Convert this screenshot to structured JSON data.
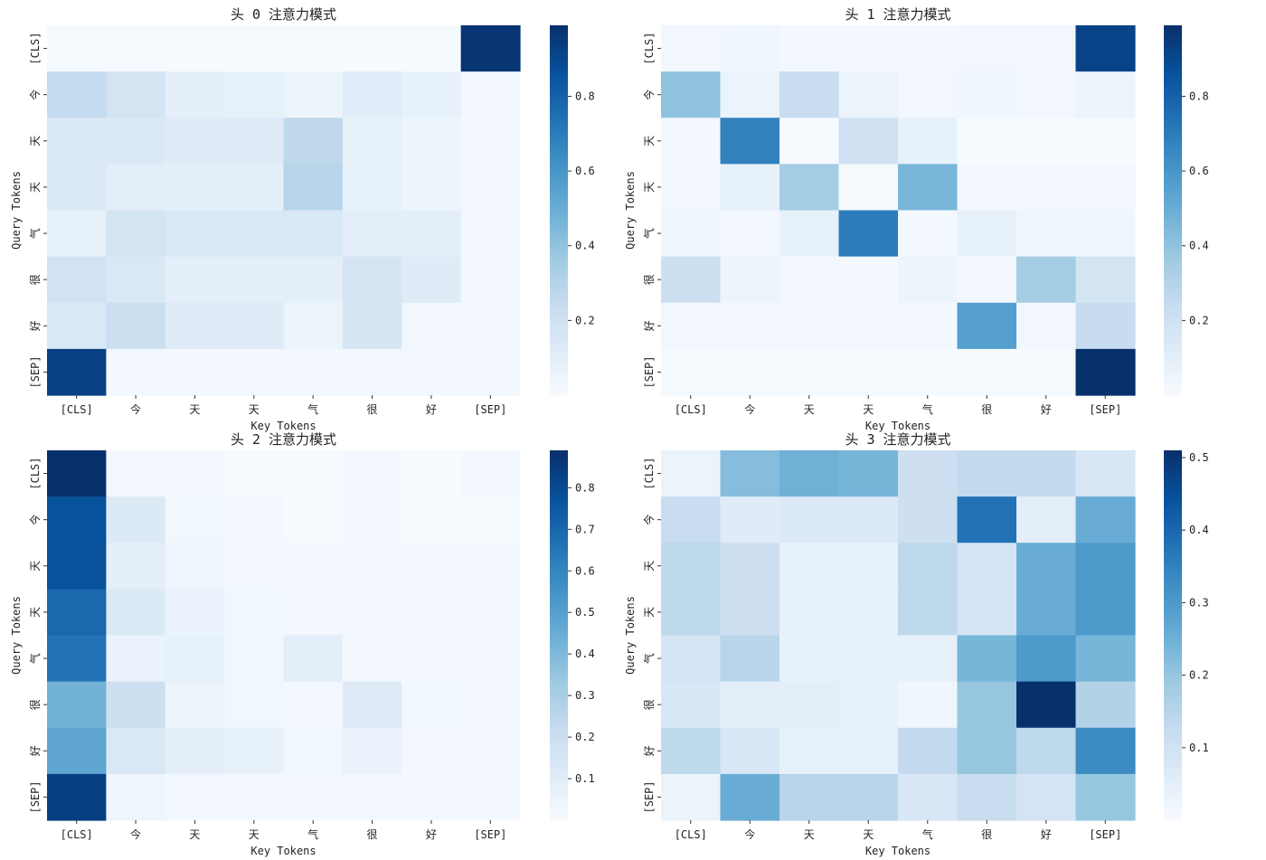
{
  "chart_data": [
    {
      "type": "heatmap",
      "title": "头 0 注意力模式",
      "xlabel": "Key Tokens",
      "ylabel": "Query Tokens",
      "x_categories": [
        "[CLS]",
        "今",
        "天",
        "天",
        "气",
        "很",
        "好",
        "[SEP]"
      ],
      "y_categories": [
        "[CLS]",
        "今",
        "天",
        "天",
        "气",
        "很",
        "好",
        "[SEP]"
      ],
      "values": [
        [
          0.01,
          0.01,
          0.01,
          0.01,
          0.01,
          0.01,
          0.01,
          0.97
        ],
        [
          0.25,
          0.18,
          0.09,
          0.08,
          0.06,
          0.11,
          0.08,
          0.02
        ],
        [
          0.14,
          0.14,
          0.12,
          0.12,
          0.27,
          0.08,
          0.05,
          0.02
        ],
        [
          0.14,
          0.1,
          0.09,
          0.09,
          0.29,
          0.08,
          0.05,
          0.02
        ],
        [
          0.08,
          0.18,
          0.15,
          0.15,
          0.15,
          0.1,
          0.1,
          0.02
        ],
        [
          0.19,
          0.15,
          0.09,
          0.09,
          0.09,
          0.17,
          0.12,
          0.02
        ],
        [
          0.15,
          0.22,
          0.12,
          0.12,
          0.06,
          0.17,
          0.03,
          0.02
        ],
        [
          0.93,
          0.02,
          0.02,
          0.02,
          0.02,
          0.02,
          0.02,
          0.02
        ]
      ],
      "colorbar": {
        "colormap": "Blues",
        "min": 0.0,
        "max": 0.99,
        "ticks": [
          0.2,
          0.4,
          0.6,
          0.8
        ],
        "tick_labels": [
          "0.2",
          "0.4",
          "0.6",
          "0.8"
        ]
      }
    },
    {
      "type": "heatmap",
      "title": "头 1 注意力模式",
      "xlabel": "Key Tokens",
      "ylabel": "Query Tokens",
      "x_categories": [
        "[CLS]",
        "今",
        "天",
        "天",
        "气",
        "很",
        "好",
        "[SEP]"
      ],
      "y_categories": [
        "[CLS]",
        "今",
        "天",
        "天",
        "气",
        "很",
        "好",
        "[SEP]"
      ],
      "values": [
        [
          0.03,
          0.04,
          0.02,
          0.02,
          0.02,
          0.03,
          0.03,
          0.92
        ],
        [
          0.4,
          0.06,
          0.23,
          0.06,
          0.03,
          0.04,
          0.03,
          0.05
        ],
        [
          0.02,
          0.68,
          0.01,
          0.2,
          0.08,
          0.01,
          0.01,
          0.01
        ],
        [
          0.02,
          0.08,
          0.35,
          0.01,
          0.46,
          0.02,
          0.02,
          0.02
        ],
        [
          0.04,
          0.02,
          0.08,
          0.7,
          0.02,
          0.08,
          0.04,
          0.04
        ],
        [
          0.21,
          0.05,
          0.02,
          0.02,
          0.05,
          0.02,
          0.35,
          0.18
        ],
        [
          0.03,
          0.02,
          0.02,
          0.02,
          0.02,
          0.56,
          0.03,
          0.24
        ],
        [
          0.01,
          0.01,
          0.01,
          0.01,
          0.01,
          0.01,
          0.01,
          0.99
        ]
      ],
      "colorbar": {
        "colormap": "Blues",
        "min": 0.0,
        "max": 0.99,
        "ticks": [
          0.2,
          0.4,
          0.6,
          0.8
        ],
        "tick_labels": [
          "0.2",
          "0.4",
          "0.6",
          "0.8"
        ]
      }
    },
    {
      "type": "heatmap",
      "title": "头 2 注意力模式",
      "xlabel": "Key Tokens",
      "ylabel": "Query Tokens",
      "x_categories": [
        "[CLS]",
        "今",
        "天",
        "天",
        "气",
        "很",
        "好",
        "[SEP]"
      ],
      "y_categories": [
        "[CLS]",
        "今",
        "天",
        "天",
        "气",
        "很",
        "好",
        "[SEP]"
      ],
      "values": [
        [
          0.89,
          0.02,
          0.02,
          0.01,
          0.01,
          0.02,
          0.01,
          0.02
        ],
        [
          0.78,
          0.12,
          0.03,
          0.02,
          0.01,
          0.02,
          0.01,
          0.01
        ],
        [
          0.78,
          0.08,
          0.04,
          0.02,
          0.02,
          0.02,
          0.02,
          0.02
        ],
        [
          0.7,
          0.12,
          0.06,
          0.03,
          0.02,
          0.02,
          0.02,
          0.02
        ],
        [
          0.66,
          0.06,
          0.07,
          0.03,
          0.09,
          0.02,
          0.02,
          0.02
        ],
        [
          0.43,
          0.19,
          0.05,
          0.03,
          0.02,
          0.11,
          0.03,
          0.02
        ],
        [
          0.48,
          0.13,
          0.09,
          0.07,
          0.03,
          0.06,
          0.02,
          0.02
        ],
        [
          0.84,
          0.04,
          0.02,
          0.02,
          0.02,
          0.02,
          0.02,
          0.02
        ]
      ],
      "colorbar": {
        "colormap": "Blues",
        "min": 0.0,
        "max": 0.89,
        "ticks": [
          0.1,
          0.2,
          0.3,
          0.4,
          0.5,
          0.6,
          0.7,
          0.8
        ],
        "tick_labels": [
          "0.1",
          "0.2",
          "0.3",
          "0.4",
          "0.5",
          "0.6",
          "0.7",
          "0.8"
        ]
      }
    },
    {
      "type": "heatmap",
      "title": "头 3 注意力模式",
      "xlabel": "Key Tokens",
      "ylabel": "Query Tokens",
      "x_categories": [
        "[CLS]",
        "今",
        "天",
        "天",
        "气",
        "很",
        "好",
        "[SEP]"
      ],
      "y_categories": [
        "[CLS]",
        "今",
        "天",
        "天",
        "气",
        "很",
        "好",
        "[SEP]"
      ],
      "values": [
        [
          0.03,
          0.22,
          0.25,
          0.24,
          0.11,
          0.13,
          0.13,
          0.08
        ],
        [
          0.12,
          0.06,
          0.07,
          0.07,
          0.11,
          0.38,
          0.05,
          0.26
        ],
        [
          0.14,
          0.11,
          0.04,
          0.04,
          0.14,
          0.09,
          0.26,
          0.3
        ],
        [
          0.14,
          0.11,
          0.04,
          0.04,
          0.14,
          0.09,
          0.26,
          0.3
        ],
        [
          0.09,
          0.15,
          0.04,
          0.04,
          0.04,
          0.24,
          0.3,
          0.24
        ],
        [
          0.08,
          0.05,
          0.05,
          0.04,
          0.02,
          0.2,
          0.51,
          0.16
        ],
        [
          0.14,
          0.08,
          0.04,
          0.04,
          0.13,
          0.2,
          0.14,
          0.33
        ],
        [
          0.03,
          0.26,
          0.15,
          0.15,
          0.08,
          0.12,
          0.09,
          0.2
        ]
      ],
      "colorbar": {
        "colormap": "Blues",
        "min": 0.0,
        "max": 0.51,
        "ticks": [
          0.1,
          0.2,
          0.3,
          0.4,
          0.5
        ],
        "tick_labels": [
          "0.1",
          "0.2",
          "0.3",
          "0.4",
          "0.5"
        ]
      }
    }
  ]
}
